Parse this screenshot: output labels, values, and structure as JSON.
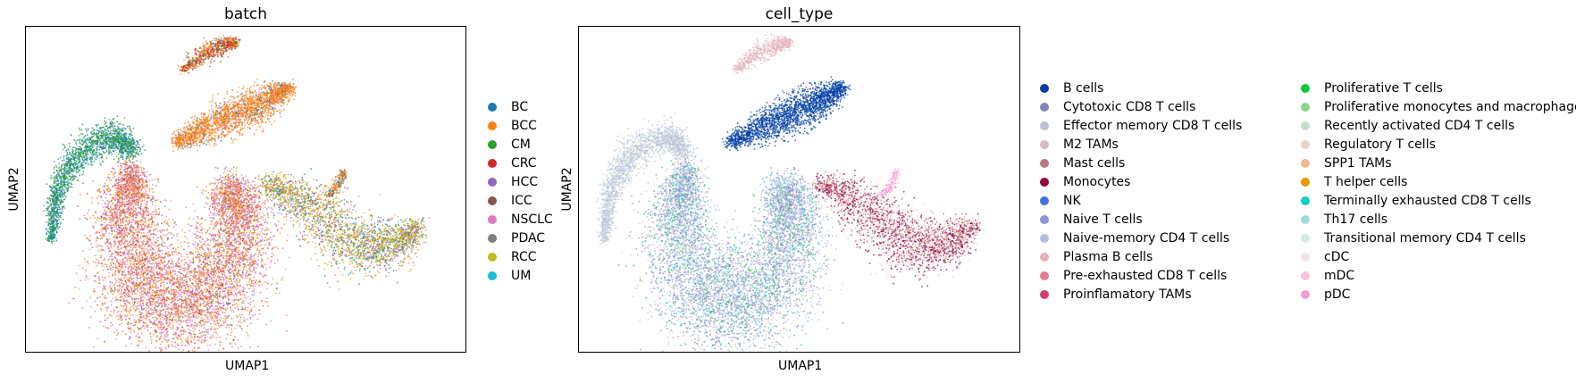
{
  "chart_data": [
    {
      "type": "scatter",
      "title": "batch",
      "xlabel": "UMAP1",
      "ylabel": "UMAP2",
      "grid": false,
      "legend_position": "right",
      "legend_columns": 1,
      "legend": [
        {
          "name": "BC",
          "color": "#1f77b4"
        },
        {
          "name": "BCC",
          "color": "#ff7f0e"
        },
        {
          "name": "CM",
          "color": "#2ca02c"
        },
        {
          "name": "CRC",
          "color": "#d62728"
        },
        {
          "name": "HCC",
          "color": "#9467bd"
        },
        {
          "name": "ICC",
          "color": "#8c564b"
        },
        {
          "name": "NSCLC",
          "color": "#e377c2"
        },
        {
          "name": "PDAC",
          "color": "#7f7f7f"
        },
        {
          "name": "RCC",
          "color": "#bcbd22"
        },
        {
          "name": "UM",
          "color": "#17becf"
        }
      ]
    },
    {
      "type": "scatter",
      "title": "cell_type",
      "xlabel": "UMAP1",
      "ylabel": "UMAP2",
      "grid": false,
      "legend_position": "right",
      "legend_columns": 2,
      "legend": [
        {
          "name": "B cells",
          "color": "#023fa5"
        },
        {
          "name": "Cytotoxic CD8 T cells",
          "color": "#7d87b9"
        },
        {
          "name": "Effector memory CD8 T cells",
          "color": "#bec1d4"
        },
        {
          "name": "M2 TAMs",
          "color": "#d6bcc0"
        },
        {
          "name": "Mast cells",
          "color": "#bb7784"
        },
        {
          "name": "Monocytes",
          "color": "#8e063b"
        },
        {
          "name": "NK",
          "color": "#4a6fe3"
        },
        {
          "name": "Naive T cells",
          "color": "#8595e1"
        },
        {
          "name": "Naive-memory CD4 T cells",
          "color": "#b5bbe3"
        },
        {
          "name": "Plasma B cells",
          "color": "#e6afb9"
        },
        {
          "name": "Pre-exhausted CD8 T cells",
          "color": "#e07b91"
        },
        {
          "name": "Proinflamatory TAMs",
          "color": "#d33f6a"
        },
        {
          "name": "Proliferative T cells",
          "color": "#11c638"
        },
        {
          "name": "Proliferative monocytes and macrophages",
          "color": "#8dd593"
        },
        {
          "name": "Recently activated CD4 T cells",
          "color": "#c6dec7"
        },
        {
          "name": "Regulatory T cells",
          "color": "#ead3c6"
        },
        {
          "name": "SPP1 TAMs",
          "color": "#f0b98d"
        },
        {
          "name": "T helper cells",
          "color": "#ef9708"
        },
        {
          "name": "Terminally exhausted CD8 T cells",
          "color": "#0fcfc0"
        },
        {
          "name": "Th17 cells",
          "color": "#9cded6"
        },
        {
          "name": "Transitional memory CD4 T cells",
          "color": "#d5eae7"
        },
        {
          "name": "cDC",
          "color": "#f3e1eb"
        },
        {
          "name": "mDC",
          "color": "#f6c4e1"
        },
        {
          "name": "pDC",
          "color": "#f79cd4"
        }
      ]
    }
  ]
}
